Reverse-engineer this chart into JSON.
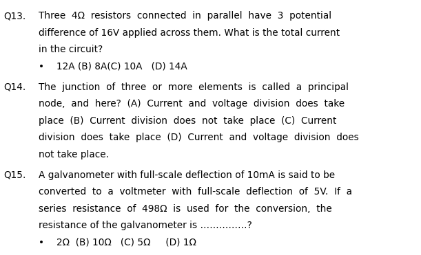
{
  "bg_color": "#ffffff",
  "text_color": "#000000",
  "font_family": "DejaVu Sans",
  "font_size": 9.8,
  "q13_label": "Q13.",
  "q13_line1": "Three  4Ω  resistors  connected  in  parallel  have  3  potential",
  "q13_line2": "difference of 16V applied across them. What is the total current",
  "q13_line3": "in the circuit?",
  "q13_answer_bullet": "•",
  "q13_answer_text": "12A (B) 8A(C) 10A   (D) 14A",
  "q14_label": "Q14.",
  "q14_line1": "The  junction  of  three  or  more  elements  is  called  a  principal",
  "q14_line2": "node,  and  here?  (A)  Current  and  voltage  division  does  take",
  "q14_line3": "place  (B)  Current  division  does  not  take  place  (C)  Current",
  "q14_line4": "division  does  take  place  (D)  Current  and  voltage  division  does",
  "q14_line5": "not take place.",
  "q15_label": "Q15.",
  "q15_line1": "A galvanometer with full-scale deflection of 10mA is said to be",
  "q15_line2": "converted  to  a  voltmeter  with  full-scale  deflection  of  5V.  If  a",
  "q15_line3": "series  resistance  of  498Ω  is  used  for  the  conversion,  the",
  "q15_line4": "resistance of the galvanometer is ……………?",
  "q15_answer_bullet": "•",
  "q15_answer_text": "2Ω  (B) 10Ω   (C) 5Ω     (D) 1Ω",
  "figw": 6.11,
  "figh": 3.71,
  "dpi": 100
}
